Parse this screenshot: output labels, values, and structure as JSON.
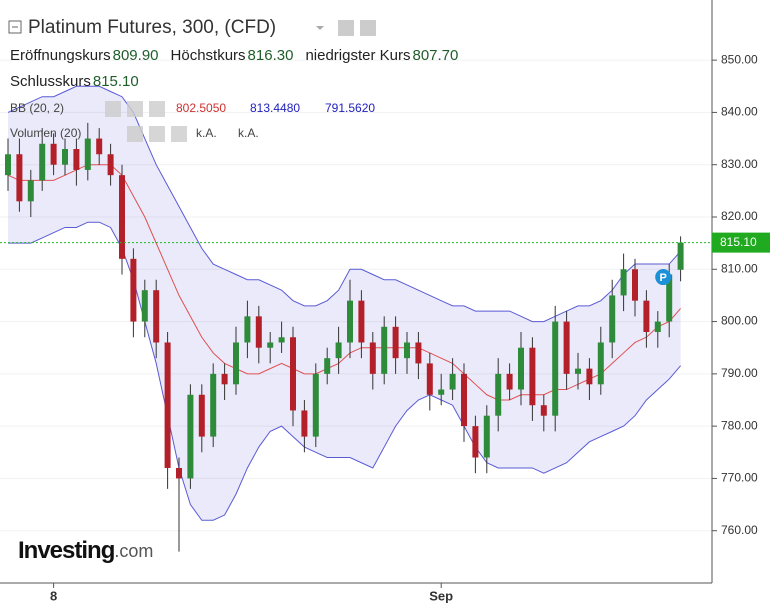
{
  "chart_data": {
    "type": "candlestick",
    "title": "Platinum Futures, 300, (CFD)",
    "legend": {
      "open": {
        "label": "Eröffnungskurs",
        "value": "809.90"
      },
      "high": {
        "label": "Höchstkurs",
        "value": "816.30"
      },
      "low": {
        "label": "niedrigster Kurs",
        "value": "807.70"
      },
      "close": {
        "label": "Schlusskurs",
        "value": "815.10"
      },
      "bb": {
        "label": "BB (20, 2)",
        "middle": "802.5050",
        "upper": "813.4480",
        "lower": "791.5620"
      },
      "volume": {
        "label": "Volumen (20)",
        "value1": "k.A.",
        "value2": "k.A."
      }
    },
    "logo": "Investing",
    "logo_suffix": ".com",
    "marker": "P",
    "last_price": {
      "value": 815.1,
      "label": "815.10"
    },
    "up_color": "#2e8b3a",
    "down_color": "#b3202a",
    "band_color": "#5a5ad6",
    "middle_color": "#e05050",
    "ylim": [
      750,
      861.5
    ],
    "yticks": [
      {
        "value": 760,
        "label": "760.00"
      },
      {
        "value": 770,
        "label": "770.00"
      },
      {
        "value": 780,
        "label": "780.00"
      },
      {
        "value": 790,
        "label": "790.00"
      },
      {
        "value": 800,
        "label": "800.00"
      },
      {
        "value": 810,
        "label": "810.00"
      },
      {
        "value": 820,
        "label": "820.00"
      },
      {
        "value": 830,
        "label": "830.00"
      },
      {
        "value": 840,
        "label": "840.00"
      },
      {
        "value": 850,
        "label": "850.00"
      }
    ],
    "categories": [
      null,
      null,
      null,
      null,
      "8",
      null,
      null,
      null,
      null,
      null,
      null,
      null,
      null,
      null,
      null,
      null,
      null,
      null,
      null,
      null,
      null,
      null,
      null,
      null,
      null,
      null,
      null,
      null,
      null,
      null,
      null,
      null,
      null,
      null,
      null,
      null,
      null,
      null,
      "Sep",
      null,
      null,
      null,
      null,
      null,
      null,
      null,
      null,
      null,
      null,
      null,
      null,
      null,
      null,
      null,
      null,
      null,
      null,
      null,
      null,
      null
    ],
    "open": [
      828,
      832,
      823,
      827,
      834,
      830,
      833,
      829,
      835,
      832,
      828,
      812,
      800,
      806,
      796,
      772,
      770,
      786,
      778,
      790,
      788,
      796,
      801,
      795,
      796,
      797,
      783,
      778,
      790,
      793,
      796,
      804,
      796,
      790,
      799,
      793,
      796,
      792,
      786,
      787,
      790,
      780,
      774,
      782,
      790,
      787,
      795,
      784,
      782,
      800,
      790,
      791,
      788,
      796,
      805,
      810,
      804,
      798,
      800,
      809.9
    ],
    "high": [
      835,
      835,
      829,
      837,
      836,
      835,
      835,
      838,
      837,
      834,
      830,
      814,
      808,
      808,
      798,
      774,
      788,
      788,
      792,
      792,
      799,
      804,
      803,
      798,
      800,
      799,
      785,
      792,
      795,
      799,
      808,
      806,
      798,
      801,
      801,
      798,
      798,
      794,
      790,
      793,
      792,
      782,
      784,
      793,
      792,
      798,
      797,
      786,
      803,
      802,
      794,
      793,
      799,
      808,
      813,
      812,
      806,
      802,
      811,
      816.3
    ],
    "low": [
      825,
      821,
      820,
      825,
      828,
      828,
      826,
      827,
      830,
      826,
      809,
      797,
      797,
      793,
      768,
      756,
      768,
      775,
      776,
      785,
      786,
      793,
      792,
      792,
      794,
      780,
      775,
      776,
      788,
      790,
      793,
      793,
      787,
      788,
      790,
      790,
      789,
      783,
      784,
      785,
      777,
      771,
      771,
      779,
      785,
      784,
      781,
      779,
      779,
      787,
      787,
      785,
      786,
      793,
      802,
      801,
      795,
      795,
      797,
      807.7
    ],
    "close": [
      832,
      823,
      827,
      834,
      830,
      833,
      829,
      835,
      832,
      828,
      812,
      800,
      806,
      796,
      772,
      770,
      786,
      778,
      790,
      788,
      796,
      801,
      795,
      796,
      797,
      783,
      778,
      790,
      793,
      796,
      804,
      796,
      790,
      799,
      793,
      796,
      792,
      786,
      787,
      790,
      780,
      774,
      782,
      790,
      787,
      795,
      784,
      782,
      800,
      790,
      791,
      788,
      796,
      805,
      810,
      804,
      798,
      800,
      809,
      815.1
    ],
    "bb_upper": [
      840,
      841,
      842,
      843,
      843,
      844,
      845,
      845,
      845,
      844,
      843,
      840,
      835,
      830,
      826,
      822,
      818,
      814,
      811,
      810,
      809,
      808,
      808,
      807,
      806,
      804,
      803,
      803,
      804,
      806,
      810,
      810,
      809,
      808,
      808,
      807,
      806,
      805,
      804,
      803,
      803,
      802,
      802,
      802,
      802,
      801,
      800,
      800,
      801,
      802,
      803,
      803,
      804,
      806,
      809,
      811,
      811,
      811,
      811,
      813.448
    ],
    "bb_middle": [
      828,
      827,
      827,
      827,
      827,
      828,
      829,
      830,
      830,
      830,
      828,
      824,
      820,
      815,
      810,
      805,
      801,
      797,
      794,
      792,
      791,
      790,
      790,
      791,
      792,
      791,
      790,
      790,
      791,
      792,
      794,
      795,
      795,
      795,
      795,
      795,
      795,
      794,
      793,
      792,
      790,
      788,
      786,
      785,
      785,
      786,
      786,
      786,
      787,
      787,
      788,
      789,
      790,
      792,
      794,
      796,
      797,
      799,
      800,
      802.505
    ],
    "bb_lower": [
      815,
      815,
      815,
      816,
      817,
      818,
      818,
      819,
      819,
      818,
      814,
      808,
      800,
      792,
      782,
      772,
      765,
      762,
      762,
      763,
      767,
      772,
      776,
      779,
      780,
      778,
      776,
      775,
      774,
      774,
      774,
      773,
      772,
      776,
      780,
      783,
      785,
      786,
      785,
      784,
      780,
      776,
      773,
      772,
      772,
      772,
      772,
      771,
      772,
      773,
      775,
      777,
      778,
      779,
      780,
      782,
      785,
      787,
      789,
      791.562
    ]
  }
}
